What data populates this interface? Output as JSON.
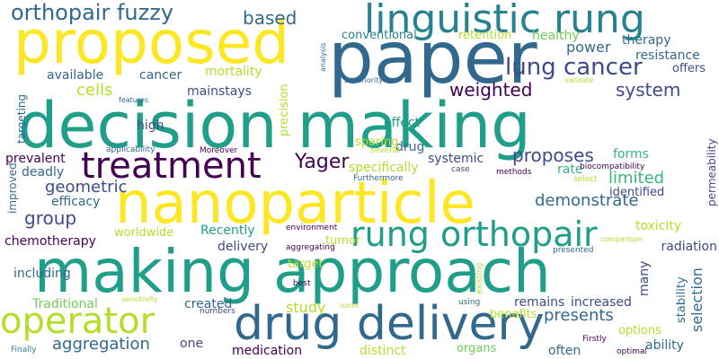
{
  "palette": {
    "dark_purple": "#440154",
    "indigo": "#3e4a89",
    "blue": "#31688e",
    "teal": "#26828e",
    "green_teal": "#1f9e89",
    "green": "#35b779",
    "lime": "#6ece58",
    "yellow_green": "#b5de2b",
    "yellow": "#fde725"
  },
  "words": [
    {
      "text": "decision making",
      "color": "#1f9e89"
    },
    {
      "text": "making approach",
      "color": "#1f9e89"
    },
    {
      "text": "nanoparticle",
      "color": "#fde725"
    },
    {
      "text": "paper",
      "color": "#31688e"
    },
    {
      "text": "proposed",
      "color": "#fde725"
    },
    {
      "text": "drug delivery",
      "color": "#31688e"
    },
    {
      "text": "linguistic rung",
      "color": "#26828e"
    },
    {
      "text": "treatment",
      "color": "#440154"
    },
    {
      "text": "rung orthopair",
      "color": "#1f9e89"
    },
    {
      "text": "operator",
      "color": "#b5de2b"
    },
    {
      "text": "orthopair fuzzy",
      "color": "#31688e"
    },
    {
      "text": "lung cancer",
      "color": "#3e4a89"
    },
    {
      "text": "based",
      "color": "#31688e"
    },
    {
      "text": "system",
      "color": "#3e4a89"
    },
    {
      "text": "Yager",
      "color": "#440154"
    },
    {
      "text": "weighted",
      "color": "#440154"
    },
    {
      "text": "cells",
      "color": "#b5de2b"
    },
    {
      "text": "group",
      "color": "#3e4a89"
    },
    {
      "text": "aggregation",
      "color": "#31688e"
    },
    {
      "text": "proposes",
      "color": "#3e4a89"
    },
    {
      "text": "presents",
      "color": "#31688e"
    },
    {
      "text": "study",
      "color": "#b5de2b"
    },
    {
      "text": "demonstrate",
      "color": "#31688e"
    },
    {
      "text": "limited",
      "color": "#35b779"
    },
    {
      "text": "selection",
      "color": "#31688e"
    },
    {
      "text": "geometric",
      "color": "#3e4a89"
    },
    {
      "text": "power",
      "color": "#31688e"
    },
    {
      "text": "cancer",
      "color": "#31688e"
    },
    {
      "text": "available",
      "color": "#31688e"
    },
    {
      "text": "mortality",
      "color": "#b5de2b"
    },
    {
      "text": "therapy",
      "color": "#31688e"
    },
    {
      "text": "resistance",
      "color": "#31688e"
    },
    {
      "text": "offers",
      "color": "#3e4a89"
    },
    {
      "text": "healthy",
      "color": "#6ece58"
    },
    {
      "text": "retention",
      "color": "#b5de2b"
    },
    {
      "text": "conventional",
      "color": "#26828e"
    },
    {
      "text": "mainstays",
      "color": "#3e4a89"
    },
    {
      "text": "high",
      "color": "#3e4a89"
    },
    {
      "text": "precision",
      "color": "#b5de2b"
    },
    {
      "text": "effect",
      "color": "#1f9e89"
    },
    {
      "text": "drug",
      "color": "#31688e"
    },
    {
      "text": "systemic",
      "color": "#3e4a89"
    },
    {
      "text": "rate",
      "color": "#35b779"
    },
    {
      "text": "forms",
      "color": "#35b779"
    },
    {
      "text": "sparing",
      "color": "#b5de2b"
    },
    {
      "text": "prevalent",
      "color": "#440154"
    },
    {
      "text": "deadly",
      "color": "#31688e"
    },
    {
      "text": "efficacy",
      "color": "#31688e"
    },
    {
      "text": "specifically",
      "color": "#b5de2b"
    },
    {
      "text": "identified",
      "color": "#3e4a89"
    },
    {
      "text": "toxicity",
      "color": "#b5de2b"
    },
    {
      "text": "radiation",
      "color": "#3e4a89"
    },
    {
      "text": "chemotherapy",
      "color": "#440154"
    },
    {
      "text": "including",
      "color": "#31688e"
    },
    {
      "text": "worldwide",
      "color": "#b5de2b"
    },
    {
      "text": "Recently",
      "color": "#1f9e89"
    },
    {
      "text": "delivery",
      "color": "#3e4a89"
    },
    {
      "text": "tumor",
      "color": "#b5de2b"
    },
    {
      "text": "target",
      "color": "#b5de2b"
    },
    {
      "text": "created",
      "color": "#31688e"
    },
    {
      "text": "remains",
      "color": "#3e4a89"
    },
    {
      "text": "increased",
      "color": "#3e4a89"
    },
    {
      "text": "Traditional",
      "color": "#6ece58"
    },
    {
      "text": "benefits",
      "color": "#b5de2b"
    },
    {
      "text": "options",
      "color": "#b5de2b"
    },
    {
      "text": "ability",
      "color": "#31688e"
    },
    {
      "text": "stability",
      "color": "#31688e"
    },
    {
      "text": "many",
      "color": "#3e4a89"
    },
    {
      "text": "one",
      "color": "#3e4a89"
    },
    {
      "text": "medication",
      "color": "#440154"
    },
    {
      "text": "distinct",
      "color": "#b5de2b"
    },
    {
      "text": "organs",
      "color": "#6ece58"
    },
    {
      "text": "often",
      "color": "#31688e"
    },
    {
      "text": "improved",
      "color": "#31688e"
    },
    {
      "text": "targeting",
      "color": "#31688e"
    },
    {
      "text": "permeability",
      "color": "#3e4a89"
    },
    {
      "text": "applicability",
      "color": "#31688e"
    },
    {
      "text": "Moreover",
      "color": "#440154"
    },
    {
      "text": "several",
      "color": "#b5de2b"
    },
    {
      "text": "case",
      "color": "#3e4a89"
    },
    {
      "text": "methods",
      "color": "#440154"
    },
    {
      "text": "Furthermore",
      "color": "#31688e"
    },
    {
      "text": "biocompatibility",
      "color": "#440154"
    },
    {
      "text": "select",
      "color": "#b5de2b"
    },
    {
      "text": "comparison",
      "color": "#b5de2b"
    },
    {
      "text": "presented",
      "color": "#31688e"
    },
    {
      "text": "environment",
      "color": "#440154"
    },
    {
      "text": "aggregating",
      "color": "#440154"
    },
    {
      "text": "best",
      "color": "#440154"
    },
    {
      "text": "sensitivity",
      "color": "#b5de2b"
    },
    {
      "text": "numbers",
      "color": "#3e4a89"
    },
    {
      "text": "norm",
      "color": "#b5de2b"
    },
    {
      "text": "using",
      "color": "#31688e"
    },
    {
      "text": "existing",
      "color": "#b5de2b"
    },
    {
      "text": "Finally",
      "color": "#26828e"
    },
    {
      "text": "Firstly",
      "color": "#440154"
    },
    {
      "text": "optimal",
      "color": "#440154"
    },
    {
      "text": "features",
      "color": "#31688e"
    },
    {
      "text": "superiority",
      "color": "#31688e"
    },
    {
      "text": "analysis",
      "color": "#31688e"
    },
    {
      "text": "validate",
      "color": "#b5de2b"
    }
  ]
}
